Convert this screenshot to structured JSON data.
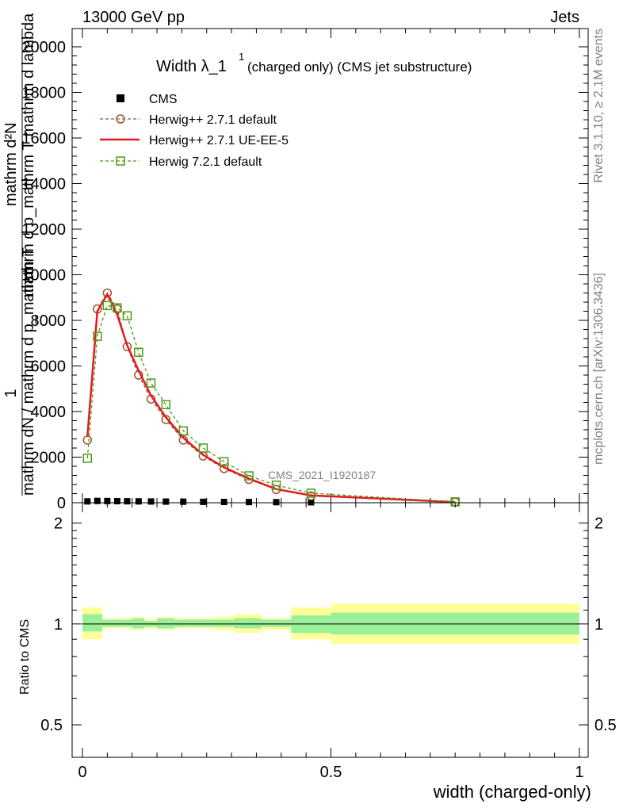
{
  "header": {
    "energy_label": "13000 GeV pp",
    "process_label": "Jets"
  },
  "side_labels": {
    "rivet": "Rivet 3.1.10, ≥ 2.1M events",
    "mcplots": "mcplots.cern.ch [arXiv:1306.3436]"
  },
  "watermark": "CMS_2021_I1920187",
  "chart_data": [
    {
      "type": "line",
      "title_main": "Width λ_1",
      "title_sup": "1",
      "title_rest": "(charged only) (CMS jet substructure)",
      "ylabel_top": "mathrm d²N",
      "ylabel_top_rest": "mathrm d p_mathrm T mathrm d lambda",
      "ylabel_frac_num": "1",
      "ylabel_bottom": "mathrm dN / mathrm d p_mathrm T",
      "xlim": [
        0,
        1
      ],
      "ylim": [
        0,
        20800
      ],
      "yticks": [
        0,
        2000,
        4000,
        6000,
        8000,
        10000,
        12000,
        14000,
        16000,
        18000,
        20000
      ],
      "ytick_labels": [
        "0",
        "2000",
        "4000",
        "6000",
        "8000",
        "10000",
        "12000",
        "14000",
        "16000",
        "18000",
        "20000"
      ],
      "legend": [
        "CMS",
        "Herwig++ 2.7.1 default",
        "Herwig++ 2.7.1 UE-EE-5",
        "Herwig 7.2.1 default"
      ],
      "legend_position": "top-left",
      "series": [
        {
          "name": "CMS",
          "style": "square-marker",
          "color": "#000000",
          "x": [
            0.01,
            0.03,
            0.05,
            0.07,
            0.09,
            0.113,
            0.138,
            0.168,
            0.203,
            0.243,
            0.285,
            0.335,
            0.39,
            0.46,
            0.75
          ],
          "y": [
            60,
            80,
            75,
            70,
            65,
            60,
            55,
            50,
            45,
            40,
            35,
            30,
            25,
            20,
            10
          ]
        },
        {
          "name": "Herwig++ 2.7.1 default",
          "style": "circle-dashed",
          "color": "#a0522d",
          "x": [
            0.01,
            0.03,
            0.05,
            0.07,
            0.09,
            0.113,
            0.138,
            0.168,
            0.203,
            0.243,
            0.285,
            0.335,
            0.39,
            0.46,
            0.75
          ],
          "y": [
            2750,
            8500,
            9200,
            8500,
            6850,
            5600,
            4550,
            3650,
            2750,
            2050,
            1500,
            1020,
            580,
            300,
            30
          ]
        },
        {
          "name": "Herwig++ 2.7.1 UE-EE-5",
          "style": "solid",
          "color": "#e41a1c",
          "x": [
            0.01,
            0.03,
            0.05,
            0.07,
            0.09,
            0.113,
            0.138,
            0.168,
            0.203,
            0.243,
            0.285,
            0.335,
            0.39,
            0.46,
            0.75
          ],
          "y": [
            2900,
            8400,
            9150,
            8250,
            6900,
            5800,
            4700,
            3750,
            2850,
            2100,
            1550,
            1060,
            600,
            320,
            30
          ]
        },
        {
          "name": "Herwig 7.2.1 default",
          "style": "square-dashed",
          "color": "#4d9a1a",
          "x": [
            0.01,
            0.03,
            0.05,
            0.07,
            0.09,
            0.113,
            0.138,
            0.168,
            0.203,
            0.243,
            0.285,
            0.335,
            0.39,
            0.46,
            0.75
          ],
          "y": [
            1950,
            7300,
            8650,
            8550,
            8200,
            6600,
            5250,
            4300,
            3150,
            2400,
            1800,
            1180,
            770,
            420,
            40
          ]
        }
      ]
    },
    {
      "type": "area",
      "ylabel": "Ratio to CMS",
      "xlabel": "width (charged-only)",
      "xlim": [
        0,
        1
      ],
      "ylim": [
        0.4,
        2.3
      ],
      "log_scale_y": true,
      "yticks": [
        0.5,
        1,
        2
      ],
      "ytick_labels": [
        "0.5",
        "1",
        "2"
      ],
      "xticks": [
        0,
        0.5,
        1
      ],
      "xtick_labels": [
        "0",
        "0.5",
        "1"
      ],
      "reference_line": 1,
      "bins": [
        0,
        0.04,
        0.06,
        0.08,
        0.1,
        0.125,
        0.15,
        0.185,
        0.22,
        0.265,
        0.305,
        0.36,
        0.42,
        0.5,
        1.0
      ],
      "inner_band": [
        [
          0.95,
          1.07
        ],
        [
          0.98,
          1.03
        ],
        [
          0.98,
          1.03
        ],
        [
          0.98,
          1.03
        ],
        [
          0.97,
          1.04
        ],
        [
          0.98,
          1.02
        ],
        [
          0.97,
          1.04
        ],
        [
          0.98,
          1.03
        ],
        [
          0.98,
          1.03
        ],
        [
          0.98,
          1.03
        ],
        [
          0.97,
          1.04
        ],
        [
          0.98,
          1.03
        ],
        [
          0.94,
          1.06
        ],
        [
          0.93,
          1.08
        ]
      ],
      "outer_band": [
        [
          0.9,
          1.12
        ],
        [
          0.97,
          1.04
        ],
        [
          0.97,
          1.04
        ],
        [
          0.97,
          1.04
        ],
        [
          0.96,
          1.05
        ],
        [
          0.97,
          1.03
        ],
        [
          0.96,
          1.05
        ],
        [
          0.97,
          1.04
        ],
        [
          0.97,
          1.04
        ],
        [
          0.96,
          1.05
        ],
        [
          0.94,
          1.07
        ],
        [
          0.96,
          1.04
        ],
        [
          0.9,
          1.12
        ],
        [
          0.87,
          1.15
        ]
      ],
      "inner_color": "#99f099",
      "outer_color": "#ffff99"
    }
  ]
}
